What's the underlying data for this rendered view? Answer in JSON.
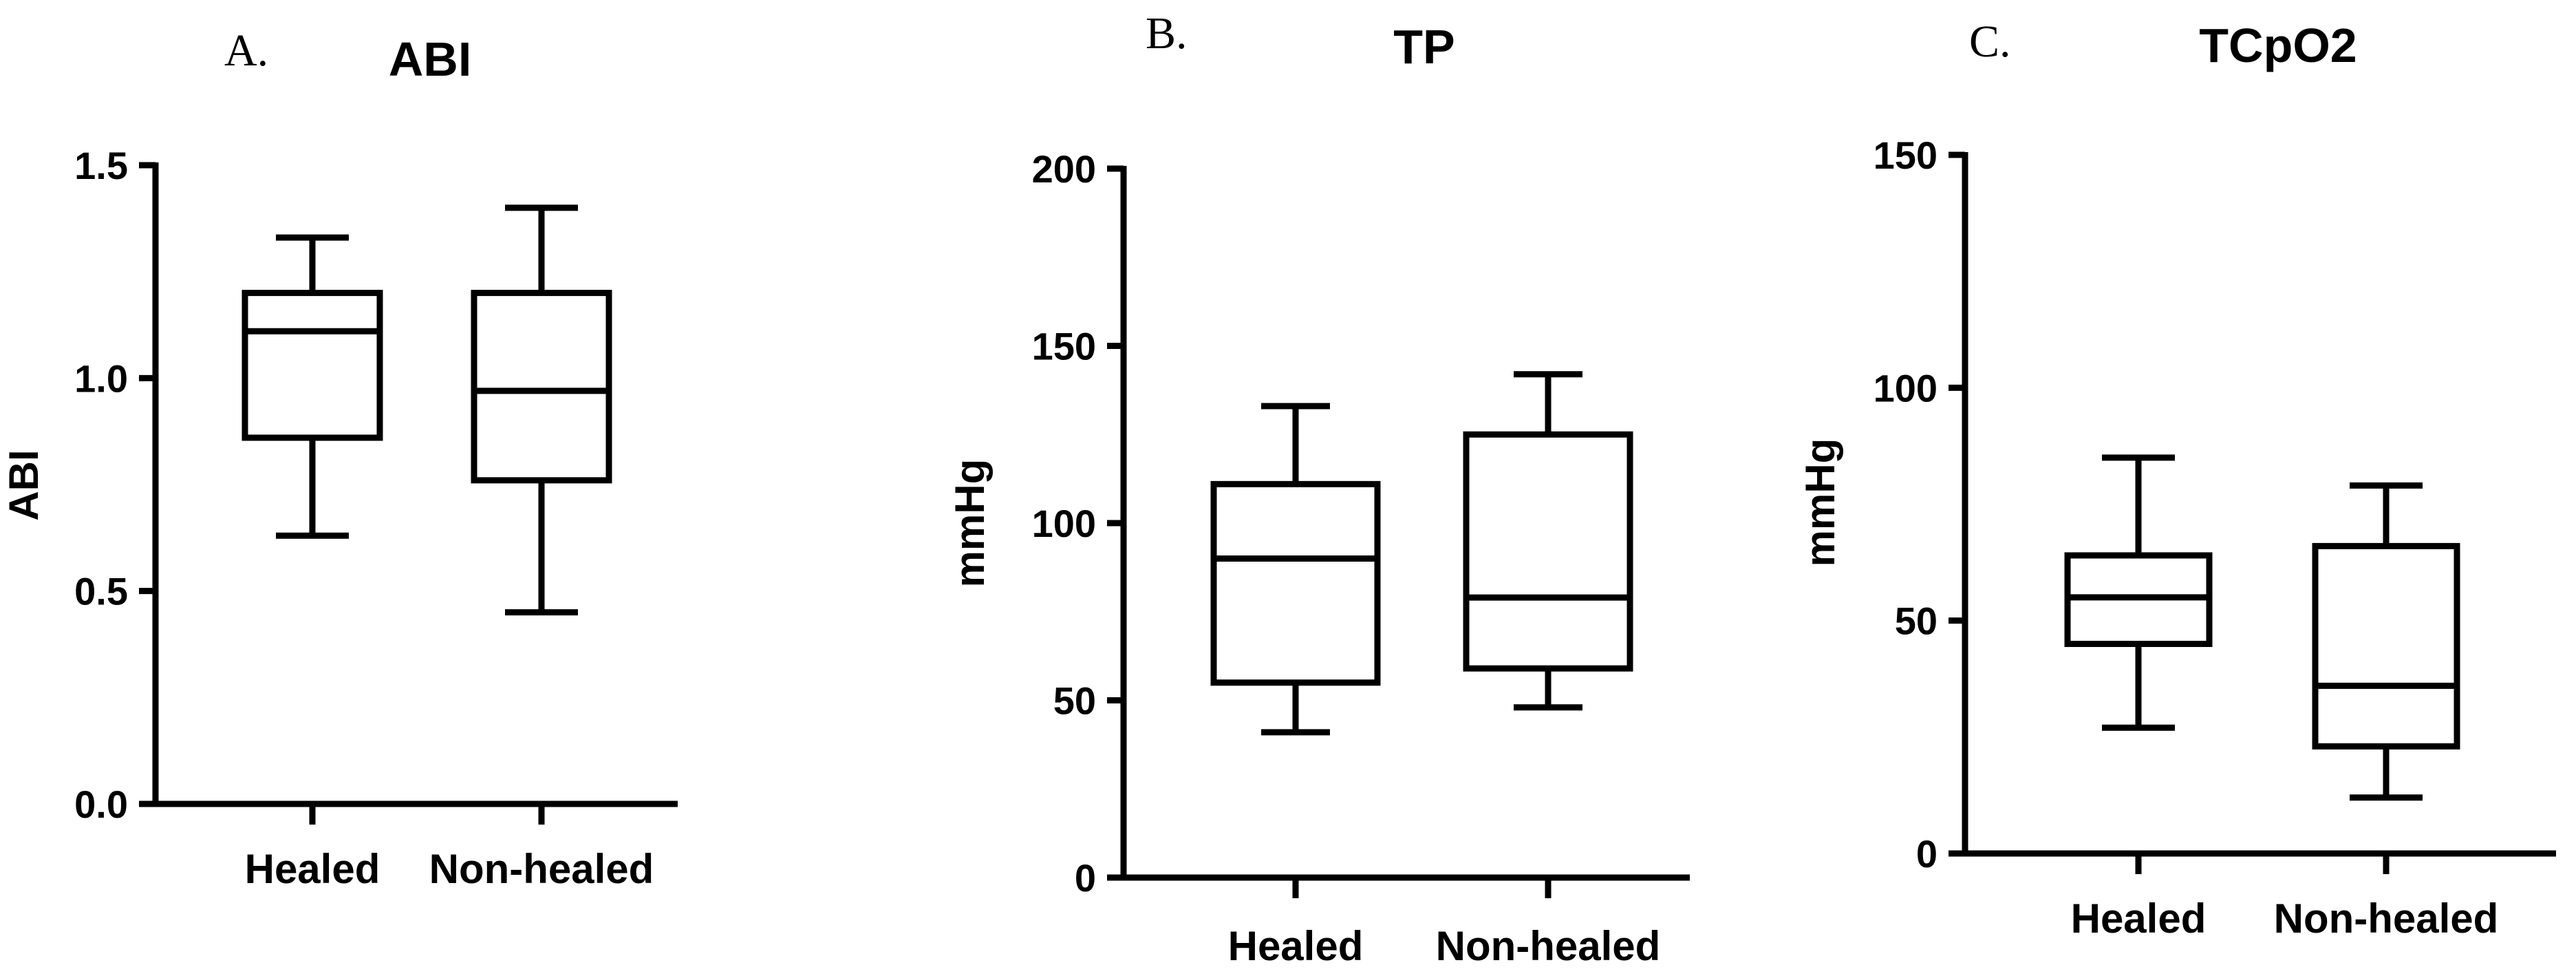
{
  "chart_data": [
    {
      "type": "box",
      "panel_letter": "A.",
      "title": "ABI",
      "ylabel": "ABI",
      "ylim": [
        0,
        1.5
      ],
      "yticks": [
        "0.0",
        "0.5",
        "1.0",
        "1.5"
      ],
      "categories": [
        "Healed",
        "Non-healed"
      ],
      "boxes": [
        {
          "category": "Healed",
          "min": 0.63,
          "q1": 0.86,
          "median": 1.11,
          "q3": 1.2,
          "max": 1.33
        },
        {
          "category": "Non-healed",
          "min": 0.45,
          "q1": 0.76,
          "median": 0.97,
          "q3": 1.2,
          "max": 1.4
        }
      ]
    },
    {
      "type": "box",
      "panel_letter": "B.",
      "title": "TP",
      "ylabel": "mmHg",
      "ylim": [
        0,
        200
      ],
      "yticks": [
        "0",
        "50",
        "100",
        "150",
        "200"
      ],
      "categories": [
        "Healed",
        "Non-healed"
      ],
      "boxes": [
        {
          "category": "Healed",
          "min": 41,
          "q1": 55,
          "median": 90,
          "q3": 111,
          "max": 133
        },
        {
          "category": "Non-healed",
          "min": 48,
          "q1": 59,
          "median": 79,
          "q3": 125,
          "max": 142
        }
      ]
    },
    {
      "type": "box",
      "panel_letter": "C.",
      "title": "TCpO2",
      "ylabel": "mmHg",
      "ylim": [
        0,
        150
      ],
      "yticks": [
        "0",
        "50",
        "100",
        "150"
      ],
      "categories": [
        "Healed",
        "Non-healed"
      ],
      "boxes": [
        {
          "category": "Healed",
          "min": 27,
          "q1": 45,
          "median": 55,
          "q3": 64,
          "max": 85
        },
        {
          "category": "Non-healed",
          "min": 12,
          "q1": 23,
          "median": 36,
          "q3": 66,
          "max": 79
        }
      ]
    }
  ]
}
